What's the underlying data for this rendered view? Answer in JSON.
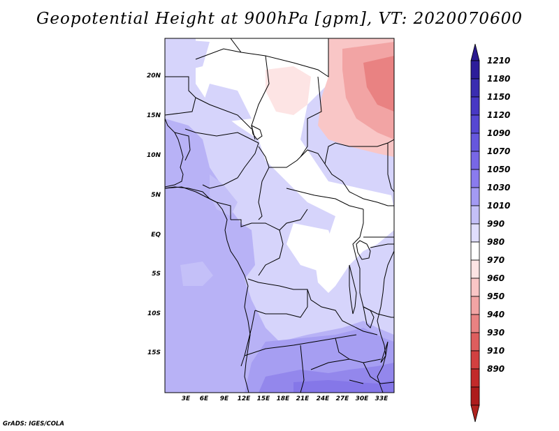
{
  "title": "Geopotential Height at 900hPa [gpm], VT: 2020070600",
  "credit": "GrADS: IGES/COLA",
  "map": {
    "lat_ticks": [
      "20N",
      "15N",
      "10N",
      "5N",
      "EQ",
      "5S",
      "10S",
      "15S"
    ],
    "lon_ticks": [
      "3E",
      "6E",
      "9E",
      "12E",
      "15E",
      "18E",
      "21E",
      "24E",
      "27E",
      "30E",
      "33E"
    ]
  },
  "colorbar": {
    "levels": [
      "1210",
      "1180",
      "1150",
      "1120",
      "1090",
      "1070",
      "1050",
      "1030",
      "1010",
      "990",
      "980",
      "970",
      "960",
      "950",
      "940",
      "930",
      "910",
      "890"
    ],
    "colors": {
      "top_arrow": "#2b1a8f",
      "blues": [
        "#2d1d9a",
        "#3a2db0",
        "#4838c4",
        "#5647d2",
        "#6657dd",
        "#7867e6",
        "#8a7bee",
        "#a39af3",
        "#c4c0f8",
        "#e0defd"
      ],
      "white": "#ffffff",
      "reds": [
        "#fde4e4",
        "#f9c6c6",
        "#f2a4a4",
        "#e98282",
        "#de5e5e",
        "#d24040",
        "#c22a2a",
        "#ad1c1c"
      ],
      "bottom_arrow": "#b0231f"
    }
  }
}
